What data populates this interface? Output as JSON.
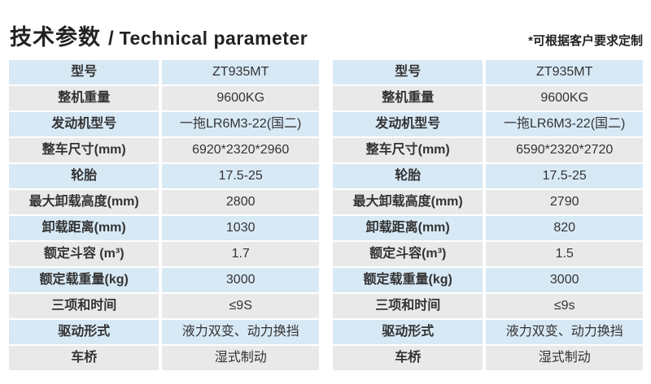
{
  "header": {
    "title_zh": "技术参数",
    "title_separator": "/",
    "title_en": "Technical parameter",
    "note": "*可根据客户要求定制"
  },
  "tables": [
    {
      "name": "left-spec-table",
      "rows": [
        {
          "label": "型号",
          "value": "ZT935MT"
        },
        {
          "label": "整机重量",
          "value": "9600KG"
        },
        {
          "label": "发动机型号",
          "value": "一拖LR6M3-22(国二)"
        },
        {
          "label": "整车尺寸(mm)",
          "value": "6920*2320*2960"
        },
        {
          "label": "轮胎",
          "value": "17.5-25"
        },
        {
          "label": "最大卸载高度(mm)",
          "value": "2800"
        },
        {
          "label": "卸载距离(mm)",
          "value": "1030"
        },
        {
          "label": "额定斗容 (m³)",
          "value": "1.7"
        },
        {
          "label": "额定载重量(kg)",
          "value": "3000"
        },
        {
          "label": "三项和时间",
          "value": "≤9S"
        },
        {
          "label": "驱动形式",
          "value": "液力双变、动力换挡"
        },
        {
          "label": "车桥",
          "value": "湿式制动"
        }
      ]
    },
    {
      "name": "right-spec-table",
      "rows": [
        {
          "label": "型号",
          "value": "ZT935MT"
        },
        {
          "label": "整机重量",
          "value": "9600KG"
        },
        {
          "label": "发动机型号",
          "value": "一拖LR6M3-22(国二)"
        },
        {
          "label": "整车尺寸(mm)",
          "value": "6590*2320*2720"
        },
        {
          "label": "轮胎",
          "value": "17.5-25"
        },
        {
          "label": "最大卸载高度(mm)",
          "value": "2790"
        },
        {
          "label": "卸载距离(mm)",
          "value": "820"
        },
        {
          "label": "额定斗容(m³)",
          "value": "1.5"
        },
        {
          "label": "额定载重量(kg)",
          "value": "3000"
        },
        {
          "label": "三项和时间",
          "value": "≤9s"
        },
        {
          "label": "驱动形式",
          "value": "液力双变、动力换挡"
        },
        {
          "label": "车桥",
          "value": "湿式制动"
        }
      ]
    }
  ],
  "colors": {
    "row_blue": "#d8e9f6",
    "row_gray": "#e9e9e9",
    "text": "#333333",
    "title": "#222222"
  }
}
